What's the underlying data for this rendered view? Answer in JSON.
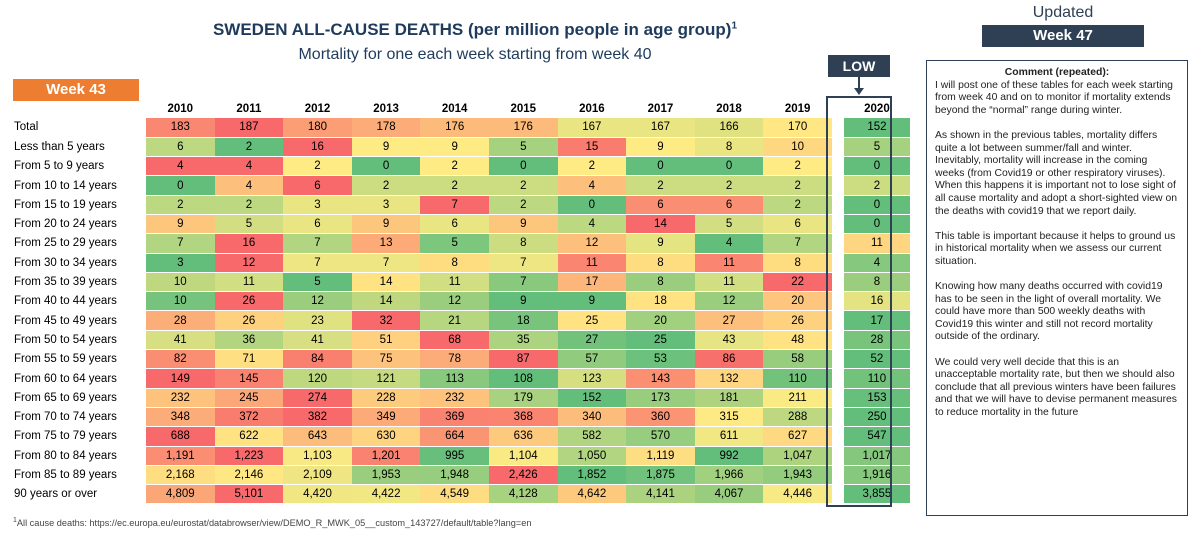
{
  "header": {
    "title": "SWEDEN ALL-CAUSE DEATHS (per million people in age group)",
    "title_sup": "1",
    "subtitle": "Mortality for one each week starting from week 40"
  },
  "badges": {
    "week": "Week 43",
    "low": "LOW",
    "updated_label": "Updated",
    "updated_week": "Week 47"
  },
  "colors": {
    "red": "#f8696b",
    "yellow": "#ffeb84",
    "green": "#63be7b",
    "dark": "#2f4055",
    "orange": "#ed7d31"
  },
  "table": {
    "years": [
      "2010",
      "2011",
      "2012",
      "2013",
      "2014",
      "2015",
      "2016",
      "2017",
      "2018",
      "2019"
    ],
    "highlight_year": "2020",
    "rows": [
      {
        "label": "Total",
        "values": [
          "183",
          "187",
          "180",
          "178",
          "176",
          "176",
          "167",
          "167",
          "166",
          "170"
        ],
        "current": "152"
      },
      {
        "label": "Less than 5 years",
        "values": [
          "6",
          "2",
          "16",
          "9",
          "9",
          "5",
          "15",
          "9",
          "8",
          "10"
        ],
        "current": "5"
      },
      {
        "label": "From 5 to 9 years",
        "values": [
          "4",
          "4",
          "2",
          "0",
          "2",
          "0",
          "2",
          "0",
          "0",
          "2"
        ],
        "current": "0"
      },
      {
        "label": "From 10 to 14 years",
        "values": [
          "0",
          "4",
          "6",
          "2",
          "2",
          "2",
          "4",
          "2",
          "2",
          "2"
        ],
        "current": "2"
      },
      {
        "label": "From 15 to 19 years",
        "values": [
          "2",
          "2",
          "3",
          "3",
          "7",
          "2",
          "0",
          "6",
          "6",
          "2"
        ],
        "current": "0"
      },
      {
        "label": "From 20 to 24 years",
        "values": [
          "9",
          "5",
          "6",
          "9",
          "6",
          "9",
          "4",
          "14",
          "5",
          "6"
        ],
        "current": "0"
      },
      {
        "label": "From 25 to 29 years",
        "values": [
          "7",
          "16",
          "7",
          "13",
          "5",
          "8",
          "12",
          "9",
          "4",
          "7"
        ],
        "current": "11"
      },
      {
        "label": "From 30 to 34 years",
        "values": [
          "3",
          "12",
          "7",
          "7",
          "8",
          "7",
          "11",
          "8",
          "11",
          "8"
        ],
        "current": "4"
      },
      {
        "label": "From 35 to 39 years",
        "values": [
          "10",
          "11",
          "5",
          "14",
          "11",
          "7",
          "17",
          "8",
          "11",
          "22"
        ],
        "current": "8"
      },
      {
        "label": "From 40 to 44 years",
        "values": [
          "10",
          "26",
          "12",
          "14",
          "12",
          "9",
          "9",
          "18",
          "12",
          "20"
        ],
        "current": "16"
      },
      {
        "label": "From 45 to 49 years",
        "values": [
          "28",
          "26",
          "23",
          "32",
          "21",
          "18",
          "25",
          "20",
          "27",
          "26"
        ],
        "current": "17"
      },
      {
        "label": "From 50 to 54 years",
        "values": [
          "41",
          "36",
          "41",
          "51",
          "68",
          "35",
          "27",
          "25",
          "43",
          "48"
        ],
        "current": "28"
      },
      {
        "label": "From 55 to 59 years",
        "values": [
          "82",
          "71",
          "84",
          "75",
          "78",
          "87",
          "57",
          "53",
          "86",
          "58"
        ],
        "current": "52"
      },
      {
        "label": "From 60 to 64 years",
        "values": [
          "149",
          "145",
          "120",
          "121",
          "113",
          "108",
          "123",
          "143",
          "132",
          "110"
        ],
        "current": "110"
      },
      {
        "label": "From 65 to 69 years",
        "values": [
          "232",
          "245",
          "274",
          "228",
          "232",
          "179",
          "152",
          "173",
          "181",
          "211"
        ],
        "current": "153"
      },
      {
        "label": "From 70 to 74 years",
        "values": [
          "348",
          "372",
          "382",
          "349",
          "369",
          "368",
          "340",
          "360",
          "315",
          "288"
        ],
        "current": "250"
      },
      {
        "label": "From 75 to 79 years",
        "values": [
          "688",
          "622",
          "643",
          "630",
          "664",
          "636",
          "582",
          "570",
          "611",
          "627"
        ],
        "current": "547"
      },
      {
        "label": "From 80 to 84 years",
        "values": [
          "1,191",
          "1,223",
          "1,103",
          "1,201",
          "995",
          "1,104",
          "1,050",
          "1,119",
          "992",
          "1,047"
        ],
        "current": "1,017"
      },
      {
        "label": "From 85 to 89 years",
        "values": [
          "2,168",
          "2,146",
          "2,109",
          "1,953",
          "1,948",
          "2,426",
          "1,852",
          "1,875",
          "1,966",
          "1,943"
        ],
        "current": "1,916"
      },
      {
        "label": "90 years or over",
        "values": [
          "4,809",
          "5,101",
          "4,420",
          "4,422",
          "4,549",
          "4,128",
          "4,642",
          "4,141",
          "4,067",
          "4,446"
        ],
        "current": "3,855"
      }
    ]
  },
  "comment": {
    "title": "Comment (repeated):",
    "paragraphs": [
      "I will post one of these tables for each week starting from week 40 and on to monitor if mortality extends beyond the “normal” range during winter.",
      "As shown in the previous tables, mortality differs quite a lot between summer/fall and winter. Inevitably, mortality will increase in the coming weeks (from Covid19 or other respiratory viruses). When this happens it is important not to lose sight of all cause mortality and adopt a short-sighted view on the deaths with covid19 that we report daily.",
      "This table is important because it helps to ground us in historical mortality when we assess our current situation.",
      "Knowing how many deaths occurred with covid19 has to be seen in the light of overall mortality. We could have more than 500 weekly deaths with Covid19 this winter and still not record mortality outside of the ordinary.",
      "We could very well decide that this is an unacceptable mortality rate, but then we should also conclude that all previous winters have been failures and that we will have to devise permanent measures to reduce mortality in the future"
    ]
  },
  "footnote": {
    "sup": "1",
    "text": "All cause deaths: https://ec.europa.eu/eurostat/databrowser/view/DEMO_R_MWK_05__custom_143727/default/table?lang=en"
  }
}
